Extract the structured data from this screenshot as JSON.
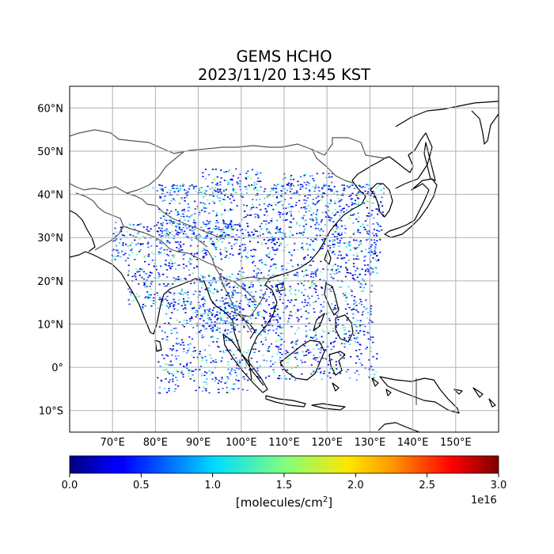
{
  "title_line1": "GEMS HCHO",
  "title_line2": "2023/11/20 13:45 KST",
  "map": {
    "projection": "PlateCarree",
    "lon_range": [
      60,
      160
    ],
    "lat_range": [
      -15,
      65
    ],
    "gridlines": true,
    "lon_ticks": [
      {
        "value": 70,
        "label": "70°E"
      },
      {
        "value": 80,
        "label": "80°E"
      },
      {
        "value": 90,
        "label": "90°E"
      },
      {
        "value": 100,
        "label": "100°E"
      },
      {
        "value": 110,
        "label": "110°E"
      },
      {
        "value": 120,
        "label": "120°E"
      },
      {
        "value": 130,
        "label": "130°E"
      },
      {
        "value": 140,
        "label": "140°E"
      },
      {
        "value": 150,
        "label": "150°E"
      }
    ],
    "lat_ticks": [
      {
        "value": 60,
        "label": "60°N"
      },
      {
        "value": 50,
        "label": "50°N"
      },
      {
        "value": 40,
        "label": "40°N"
      },
      {
        "value": 30,
        "label": "30°N"
      },
      {
        "value": 20,
        "label": "20°N"
      },
      {
        "value": 10,
        "label": "10°N"
      },
      {
        "value": 0,
        "label": "0°"
      },
      {
        "value": -10,
        "label": "10°S"
      }
    ],
    "colormap": "jet"
  },
  "colorbar": {
    "range": [
      0.0,
      3.0
    ],
    "ticks": [
      {
        "value": 0.0,
        "label": "0.0"
      },
      {
        "value": 0.5,
        "label": "0.5"
      },
      {
        "value": 1.0,
        "label": "1.0"
      },
      {
        "value": 1.5,
        "label": "1.5"
      },
      {
        "value": 2.0,
        "label": "2.0"
      },
      {
        "value": 2.5,
        "label": "2.5"
      },
      {
        "value": 3.0,
        "label": "3.0"
      }
    ],
    "label_main": "[molecules/cm",
    "label_sup": "2",
    "label_end": "]",
    "offset_text": "1e16"
  }
}
